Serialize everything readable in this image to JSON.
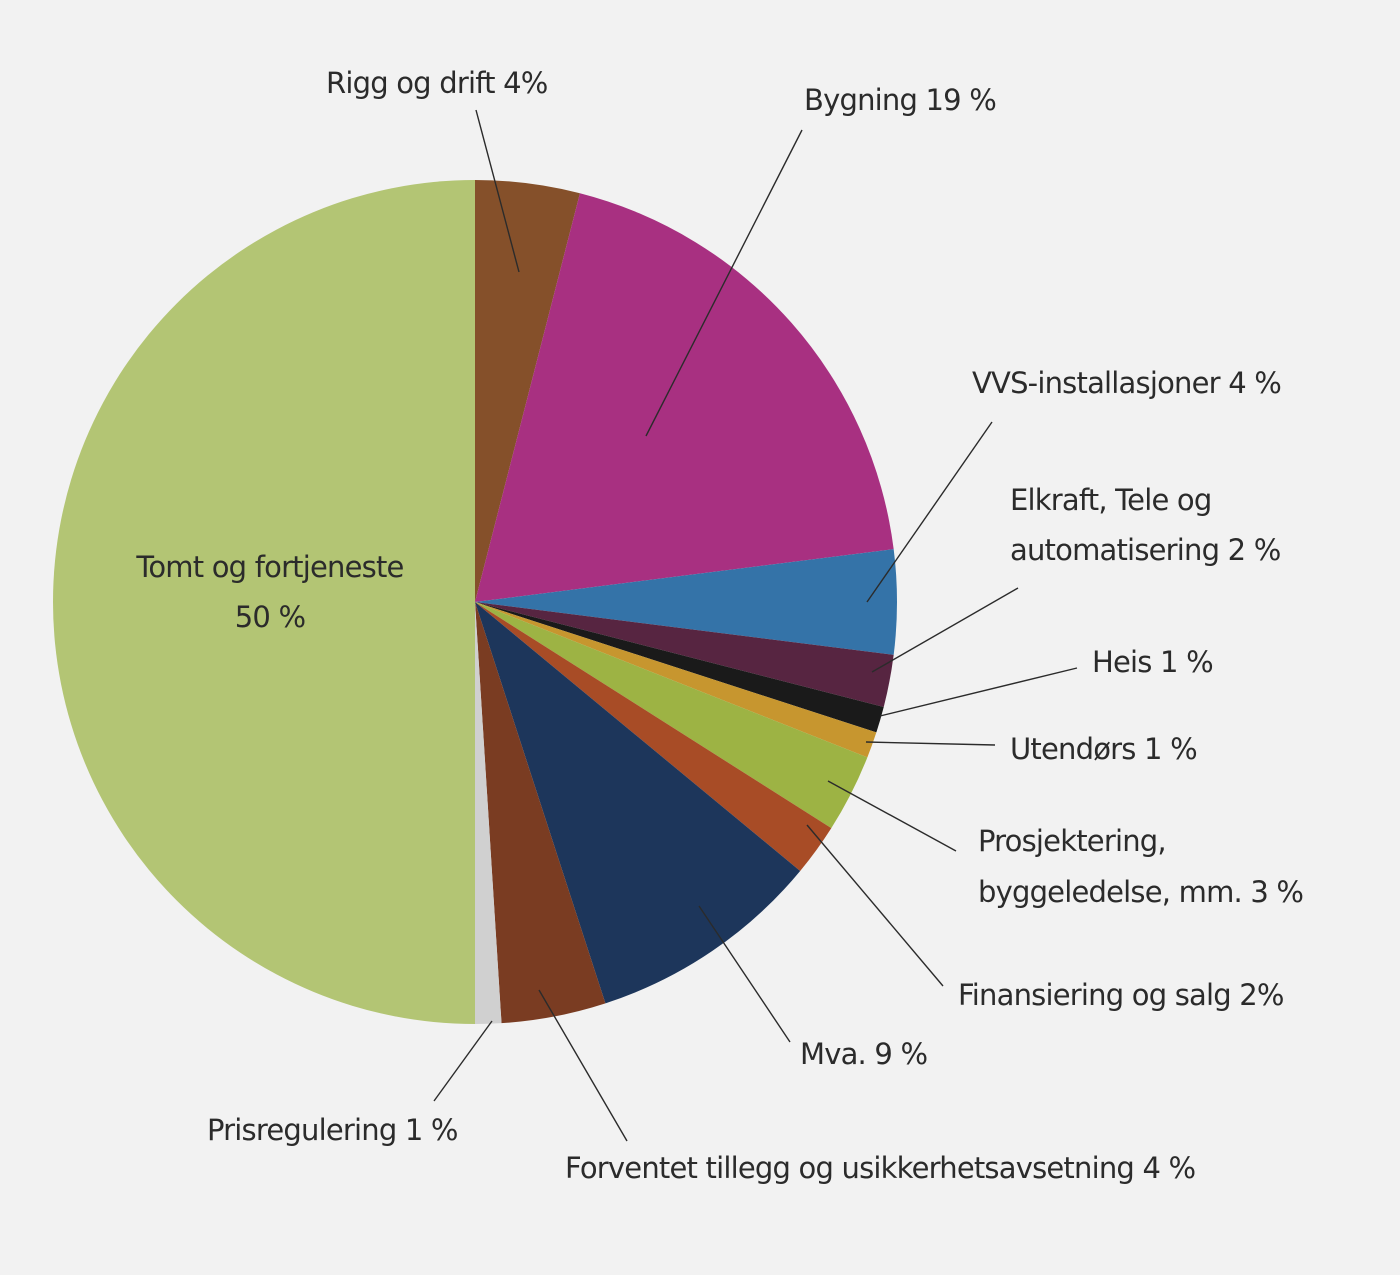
{
  "chart_data": {
    "type": "pie",
    "title": "",
    "start_angle_deg": 0,
    "direction": "clockwise",
    "slices": [
      {
        "label": "Rigg og drift 4%",
        "value": 4,
        "color": "#85502a"
      },
      {
        "label": "Bygning 19 %",
        "value": 19,
        "color": "#a83081"
      },
      {
        "label": "VVS-installasjoner 4 %",
        "value": 4,
        "color": "#3473a8"
      },
      {
        "label_lines": [
          "Elkraft, Tele og",
          "automatisering 2 %"
        ],
        "value": 2,
        "color": "#572541"
      },
      {
        "label": "Heis 1 %",
        "value": 1,
        "color": "#1a1a1a"
      },
      {
        "label": "Utendørs 1 %",
        "value": 1,
        "color": "#c7962f"
      },
      {
        "label_lines": [
          "Prosjektering,",
          "byggeledelse, mm. 3 %"
        ],
        "value": 3,
        "color": "#9db344"
      },
      {
        "label": "Finansiering og salg 2%",
        "value": 2,
        "color": "#a84c26"
      },
      {
        "label": "Mva. 9 %",
        "value": 9,
        "color": "#1d365b"
      },
      {
        "label": "Forventet tillegg og usikkerhetsavsetning 4 %",
        "value": 4,
        "color": "#7a3c22"
      },
      {
        "label": "Prisregulering 1 %",
        "value": 1,
        "color": "#d0d0d0"
      },
      {
        "label_lines": [
          "Tomt og fortjeneste",
          "50 %"
        ],
        "value": 50,
        "color": "#b3c574"
      }
    ]
  }
}
